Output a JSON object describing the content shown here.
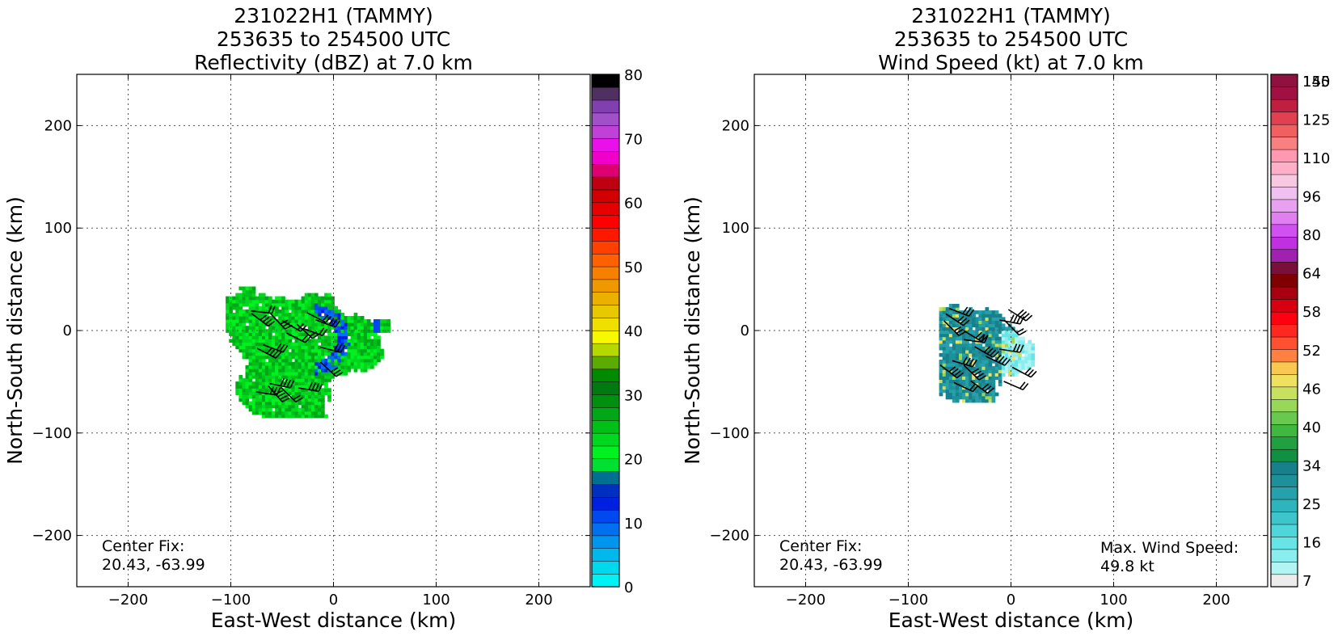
{
  "chart_data": [
    {
      "type": "heatmap",
      "title_lines": [
        "231022H1 (TAMMY)",
        "253635 to 254500 UTC",
        "Reflectivity (dBZ) at 7.0 km"
      ],
      "xlabel": "East-West distance (km)",
      "ylabel": "North-South distance (km)",
      "xlim": [
        -250,
        250
      ],
      "ylim": [
        -250,
        250
      ],
      "xticks": [
        -200,
        -100,
        0,
        100,
        200
      ],
      "yticks": [
        -200,
        -100,
        0,
        100,
        200
      ],
      "grid": true,
      "annotation_left": [
        "Center Fix:",
        "20.43, -63.99"
      ],
      "annotation_right": [],
      "colorbar": {
        "min": 0,
        "max": 80,
        "tick_labels": [
          "0",
          "10",
          "20",
          "30",
          "40",
          "50",
          "60",
          "70",
          "80"
        ],
        "tick_values": [
          0,
          10,
          20,
          30,
          40,
          50,
          60,
          70,
          80
        ],
        "colors": [
          "#00f2f2",
          "#00d8ee",
          "#00b8ec",
          "#0096ee",
          "#0070f0",
          "#0048f0",
          "#0020e0",
          "#0030c0",
          "#007090",
          "#00e030",
          "#00f020",
          "#00d820",
          "#00c018",
          "#00a818",
          "#009010",
          "#007a10",
          "#008a00",
          "#5aad00",
          "#b4d800",
          "#f8f800",
          "#f0e000",
          "#e8c800",
          "#ecb000",
          "#f09800",
          "#f88000",
          "#ff6000",
          "#ff4000",
          "#ff1800",
          "#ff0000",
          "#e60000",
          "#d20000",
          "#be0010",
          "#dc0070",
          "#f000c8",
          "#ea10ea",
          "#c040d8",
          "#a050c8",
          "#8040b0",
          "#503060",
          "#000000"
        ]
      },
      "echo_region": {
        "center": [
          -40,
          -25
        ],
        "extent_km": {
          "x": [
            -105,
            55
          ],
          "y": [
            -85,
            55
          ]
        },
        "dominant_value_dbz": 22,
        "min_value_dbz": 8
      }
    },
    {
      "type": "heatmap",
      "title_lines": [
        "231022H1 (TAMMY)",
        "253635 to 254500 UTC",
        "Wind Speed (kt) at 7.0 km"
      ],
      "xlabel": "East-West distance (km)",
      "ylabel": "North-South distance (km)",
      "xlim": [
        -250,
        250
      ],
      "ylim": [
        -250,
        250
      ],
      "xticks": [
        -200,
        -100,
        0,
        100,
        200
      ],
      "yticks": [
        -200,
        -100,
        0,
        100,
        200
      ],
      "grid": true,
      "annotation_left": [
        "Center Fix:",
        "20.43, -63.99"
      ],
      "annotation_right": [
        "Max. Wind Speed:",
        "49.8 kt"
      ],
      "colorbar": {
        "n_bins": 40,
        "tick_labels": [
          "7",
          "16",
          "25",
          "34",
          "40",
          "46",
          "52",
          "58",
          "64",
          "80",
          "96",
          "110",
          "125",
          "140",
          "155"
        ],
        "tick_bins": [
          0,
          3,
          6,
          9,
          12,
          15,
          18,
          21,
          24,
          27,
          30,
          33,
          36,
          39,
          42
        ],
        "colors": [
          "#ececec",
          "#b0f4f4",
          "#8aeeee",
          "#66e4e6",
          "#4ed6da",
          "#3cc6cc",
          "#2eb4bc",
          "#26a0aa",
          "#1e909a",
          "#18808a",
          "#109040",
          "#20a040",
          "#40b840",
          "#68c850",
          "#98d858",
          "#c8e060",
          "#f0e060",
          "#f8c850",
          "#ff8040",
          "#ff5030",
          "#ff2820",
          "#ff0010",
          "#d80010",
          "#a80010",
          "#800000",
          "#78103a",
          "#a020b0",
          "#c030e0",
          "#d050f0",
          "#e080f0",
          "#e8a0f0",
          "#f0c0f0",
          "#f8c8e0",
          "#ffb0c8",
          "#ff98b0",
          "#f88080",
          "#f06060",
          "#e04050",
          "#c02040",
          "#a01040",
          "#901040"
        ]
      },
      "wind_region": {
        "center": [
          -35,
          -25
        ],
        "extent_km": {
          "x": [
            -70,
            20
          ],
          "y": [
            -70,
            45
          ]
        },
        "dominant_value_kt": 25,
        "max_value_kt": 49.8
      }
    }
  ]
}
